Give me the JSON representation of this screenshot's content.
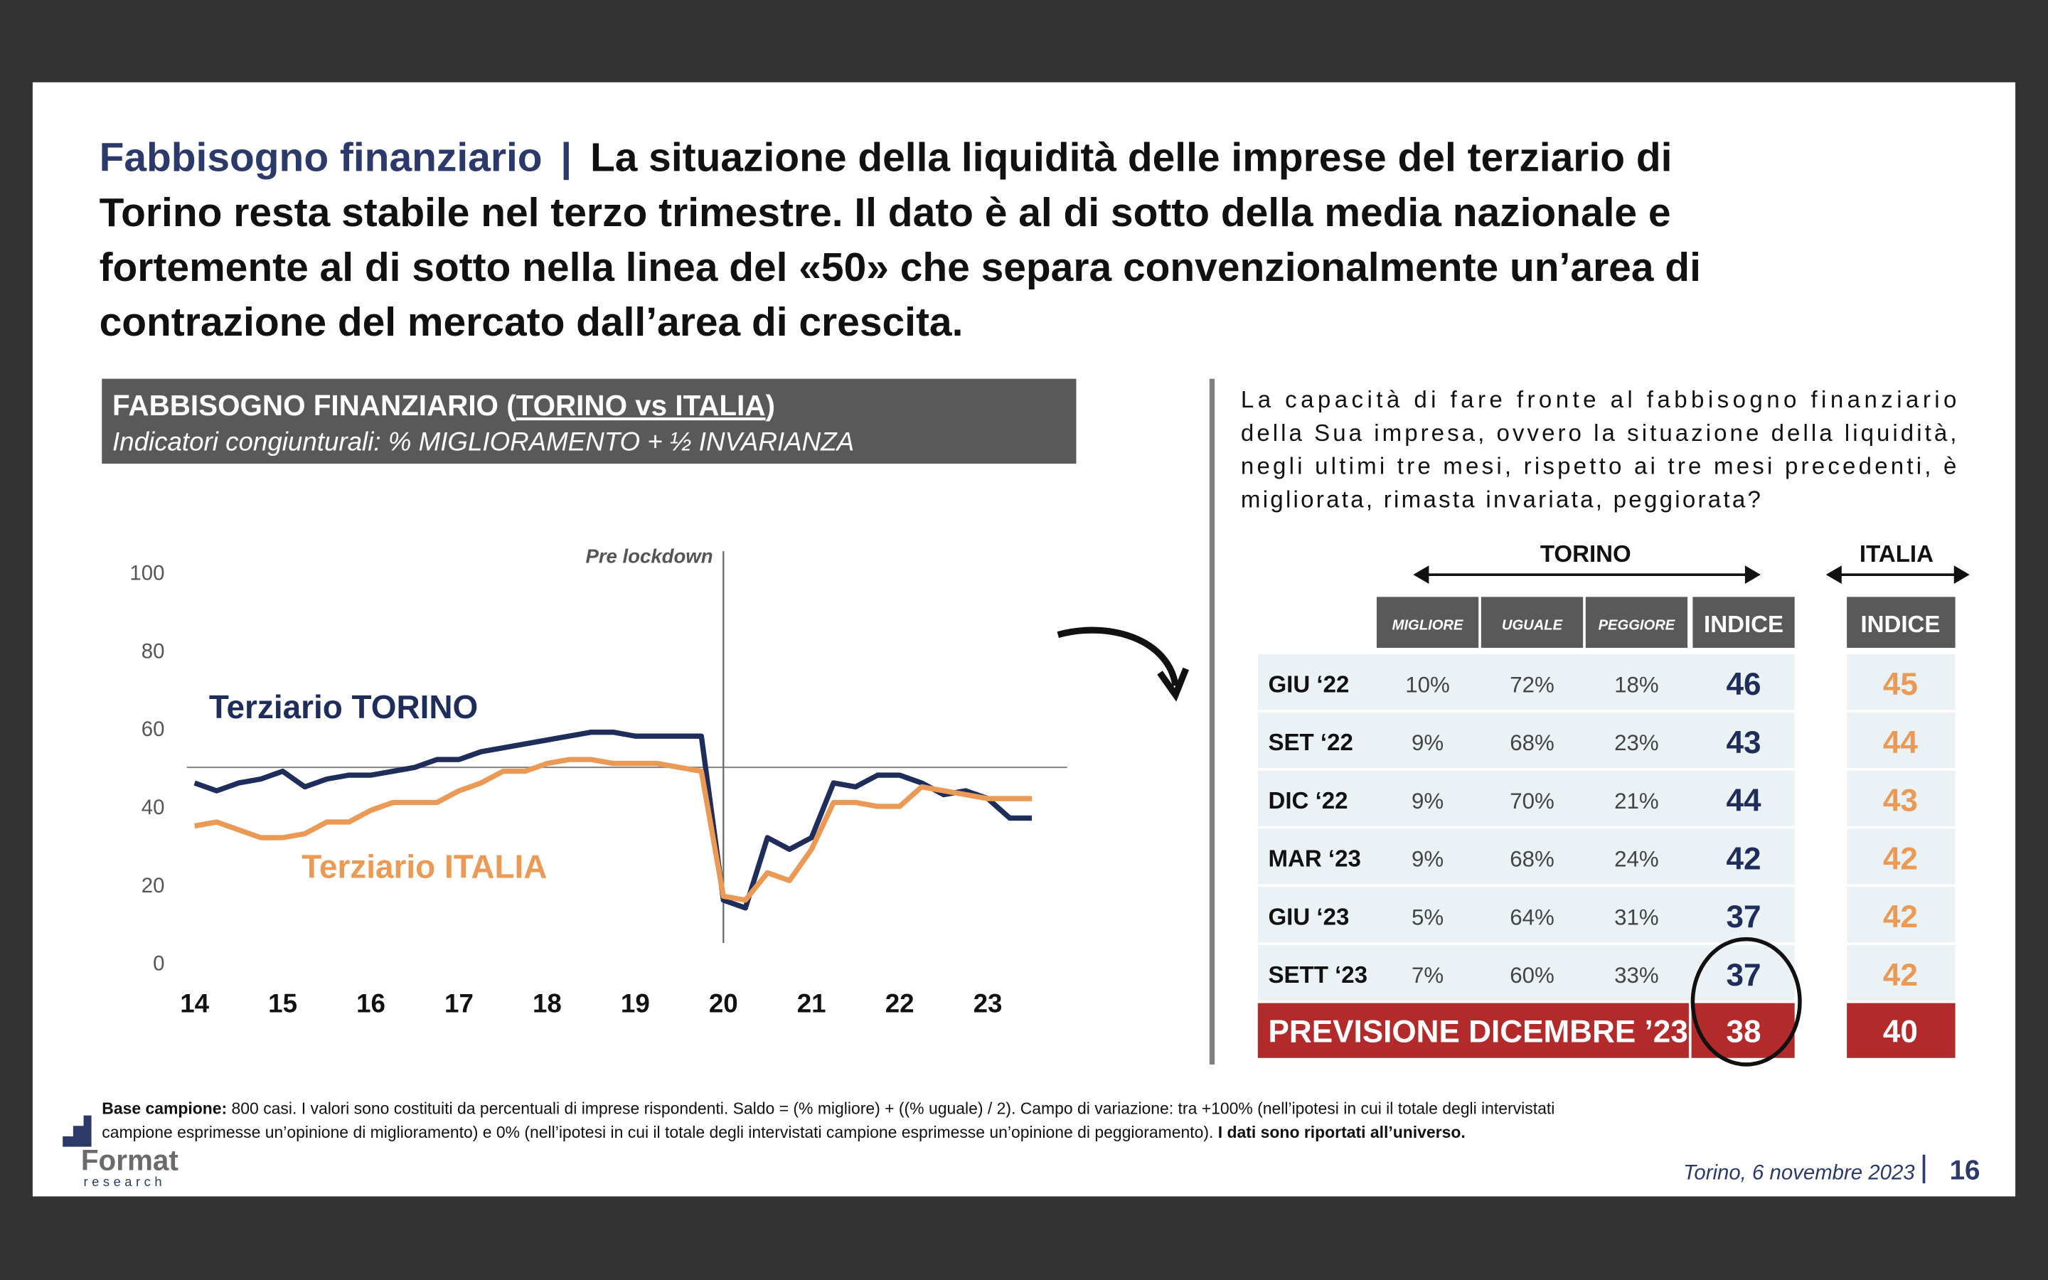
{
  "header": {
    "lead": "Fabbisogno finanziario",
    "separator": "|",
    "lines": [
      "La situazione della liquidità delle imprese del terziario di",
      "Torino resta stabile nel terzo trimestre. Il dato è al di sotto della media nazionale e",
      "fortemente al di sotto nella linea del «50» che separa convenzionalmente un’area di",
      "contrazione del mercato dall’area di crescita."
    ]
  },
  "box": {
    "title_prefix": "FABBISOGNO FINANZIARIO (",
    "title_underlined": "TORINO vs ITALIA",
    "title_suffix": ")",
    "subtitle": "Indicatori congiunturali: % MIGLIORAMENTO + ½ INVARIANZA"
  },
  "chart_data": {
    "type": "line",
    "x": [
      14,
      14.25,
      14.5,
      14.75,
      15,
      15.25,
      15.5,
      15.75,
      16,
      16.25,
      16.5,
      16.75,
      17,
      17.25,
      17.5,
      17.75,
      18,
      18.25,
      18.5,
      18.75,
      19,
      19.25,
      19.5,
      19.75,
      20,
      20.25,
      20.5,
      20.75,
      21,
      21.25,
      21.5,
      21.75,
      22,
      22.25,
      22.5,
      22.75,
      23,
      23.25,
      23.5
    ],
    "series": [
      {
        "name": "Terziario TORINO",
        "color": "#1f2d5a",
        "values": [
          46,
          44,
          46,
          47,
          49,
          45,
          47,
          48,
          48,
          49,
          50,
          52,
          52,
          54,
          55,
          56,
          57,
          58,
          59,
          59,
          58,
          58,
          58,
          58,
          16,
          14,
          32,
          29,
          32,
          46,
          45,
          48,
          48,
          46,
          43,
          44,
          42,
          37,
          37
        ]
      },
      {
        "name": "Terziario ITALIA",
        "color": "#eb9a55",
        "values": [
          35,
          36,
          34,
          32,
          32,
          33,
          36,
          36,
          39,
          41,
          41,
          41,
          44,
          46,
          49,
          49,
          51,
          52,
          52,
          51,
          51,
          51,
          50,
          49,
          17,
          16,
          23,
          21,
          29,
          41,
          41,
          40,
          40,
          45,
          44,
          43,
          42,
          42,
          42
        ]
      }
    ],
    "xlim": [
      14,
      23.5
    ],
    "xticks": [
      14,
      15,
      16,
      17,
      18,
      19,
      20,
      21,
      22,
      23
    ],
    "ylim": [
      0,
      100
    ],
    "yticks": [
      0,
      20,
      40,
      60,
      80,
      100
    ],
    "reference_line": 50,
    "annotation": {
      "text": "Pre lockdown",
      "x": 20
    }
  },
  "question": [
    "La capacità di fare fronte al fabbisogno finanziario",
    "della Sua impresa, ovvero la situazione della liquidità,",
    "negli ultimi tre mesi, rispetto ai tre mesi precedenti, è",
    "migliorata, rimasta invariata, peggiorata?"
  ],
  "table": {
    "group_torino": "TORINO",
    "group_italia": "ITALIA",
    "columns": [
      "MIGLIORE",
      "UGUALE",
      "PEGGIORE",
      "INDICE"
    ],
    "italia_column": "INDICE",
    "rows": [
      [
        "GIU ‘22",
        "10%",
        "72%",
        "18%",
        46,
        45
      ],
      [
        "SET ‘22",
        "9%",
        "68%",
        "23%",
        43,
        44
      ],
      [
        "DIC ‘22",
        "9%",
        "70%",
        "21%",
        44,
        43
      ],
      [
        "MAR ‘23",
        "9%",
        "68%",
        "24%",
        42,
        42
      ],
      [
        "GIU ‘23",
        "5%",
        "64%",
        "31%",
        37,
        42
      ],
      [
        "SETT ‘23",
        "7%",
        "60%",
        "33%",
        37,
        42
      ]
    ],
    "forecast": [
      "PREVISIONE DICEMBRE ’23",
      38,
      40
    ]
  },
  "footnote": {
    "label": "Base campione:",
    "line1": " 800 casi. I valori sono costituiti da percentuali di imprese rispondenti. Saldo = (% migliore) + ((% uguale) / 2). Campo di variazione: tra +100% (nell’ipotesi in cui il totale degli intervistati",
    "line2": "campione esprimesse un’opinione di miglioramento) e 0% (nell’ipotesi in cui il totale degli intervistati campione esprimesse un’opinione di peggioramento). ",
    "bold_end": "I dati sono riportati all’universo."
  },
  "logo": {
    "name": "Format",
    "sub": "research"
  },
  "footer": {
    "place_date": "Torino, 6 novembre 2023",
    "page": "16"
  }
}
